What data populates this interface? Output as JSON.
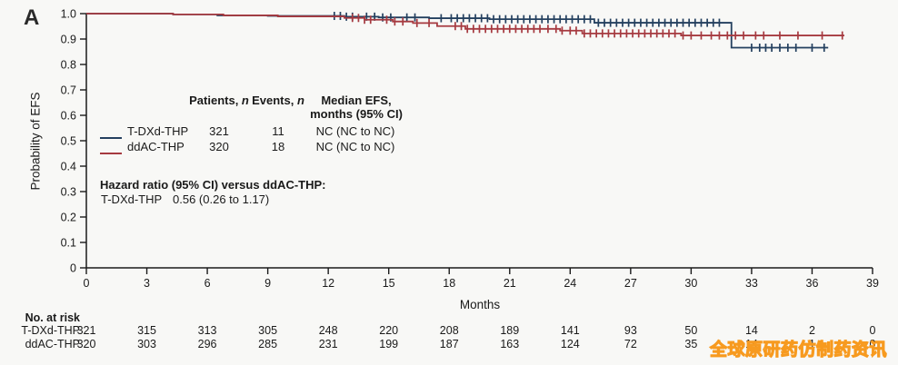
{
  "panel_label": "A",
  "colors": {
    "tdxd": "#24405f",
    "ddac": "#a63a40",
    "axis": "#1a1a1a",
    "background": "#f8f8f6",
    "watermark_fill": "#ffd98f",
    "watermark_outline": "#f79a1f"
  },
  "chart_data": {
    "type": "line",
    "subtype": "kaplan-meier-step",
    "title": "",
    "xlabel": "Months",
    "ylabel": "Probability of EFS",
    "xlim": [
      0,
      39
    ],
    "ylim": [
      0,
      1.0
    ],
    "x_ticks": [
      0,
      3,
      6,
      9,
      12,
      15,
      18,
      21,
      24,
      27,
      30,
      33,
      36,
      39
    ],
    "y_ticks": [
      "1.0",
      "0.9",
      "0.8",
      "0.7",
      "0.6",
      "0.5",
      "0.4",
      "0.3",
      "0.2",
      "0.1",
      "0"
    ],
    "grid": false,
    "legend_position": "inset-table",
    "series": [
      {
        "name": "T-DXd-THP",
        "color": "#24405f",
        "steps": [
          [
            0,
            1.0
          ],
          [
            4.3,
            0.997
          ],
          [
            6.5,
            0.993
          ],
          [
            9.0,
            0.991
          ],
          [
            12.8,
            0.988
          ],
          [
            14.5,
            0.985
          ],
          [
            17.0,
            0.982
          ],
          [
            20.0,
            0.978
          ],
          [
            25.2,
            0.964
          ],
          [
            32.0,
            0.866
          ]
        ],
        "end_month": 36.8,
        "censor_months": [
          12.3,
          12.6,
          12.9,
          13.2,
          13.9,
          14.3,
          14.7,
          15.1,
          15.9,
          16.3,
          17.6,
          18.1,
          18.4,
          18.7,
          19.0,
          19.3,
          19.6,
          19.9,
          20.2,
          20.5,
          20.8,
          21.1,
          21.4,
          21.7,
          22.0,
          22.3,
          22.6,
          22.9,
          23.2,
          23.5,
          23.8,
          24.1,
          24.4,
          24.7,
          25.0,
          25.4,
          25.7,
          26.0,
          26.3,
          26.6,
          26.9,
          27.2,
          27.5,
          27.8,
          28.1,
          28.4,
          28.7,
          29.0,
          29.3,
          29.6,
          29.9,
          30.2,
          30.5,
          30.8,
          31.1,
          31.4,
          33.0,
          33.4,
          33.7,
          34.0,
          34.4,
          34.8,
          35.2,
          36.0,
          36.6
        ]
      },
      {
        "name": "ddAC-THP",
        "color": "#a63a40",
        "steps": [
          [
            0,
            1.0
          ],
          [
            4.3,
            0.997
          ],
          [
            6.8,
            0.993
          ],
          [
            9.5,
            0.989
          ],
          [
            12.8,
            0.983
          ],
          [
            13.8,
            0.976
          ],
          [
            15.2,
            0.969
          ],
          [
            16.2,
            0.963
          ],
          [
            17.4,
            0.951
          ],
          [
            18.8,
            0.94
          ],
          [
            23.5,
            0.933
          ],
          [
            24.6,
            0.922
          ],
          [
            29.5,
            0.914
          ]
        ],
        "end_month": 37.6,
        "censor_months": [
          13.2,
          13.5,
          13.8,
          14.1,
          14.9,
          15.3,
          15.7,
          16.4,
          17.0,
          18.3,
          18.6,
          18.9,
          19.2,
          19.5,
          19.8,
          20.1,
          20.4,
          20.7,
          21.0,
          21.3,
          21.6,
          21.9,
          22.2,
          22.5,
          22.9,
          23.3,
          23.6,
          24.0,
          24.3,
          24.7,
          25.0,
          25.3,
          25.6,
          25.9,
          26.2,
          26.5,
          26.8,
          27.1,
          27.4,
          27.7,
          28.0,
          28.3,
          28.6,
          28.9,
          29.2,
          29.6,
          30.0,
          30.5,
          31.0,
          31.4,
          31.8,
          32.2,
          32.6,
          33.2,
          33.6,
          34.4,
          35.3,
          36.5,
          37.5
        ]
      }
    ]
  },
  "inset_table": {
    "headers": {
      "patients": "Patients,",
      "events": "Events,",
      "n": "n",
      "median_line1": "Median EFS,",
      "median_line2": "months (95% CI)"
    },
    "rows": [
      {
        "label": "T-DXd-THP",
        "patients": "321",
        "events": "11",
        "median": "NC (NC to NC)"
      },
      {
        "label": "ddAC-THP",
        "patients": "320",
        "events": "18",
        "median": "NC (NC to NC)"
      }
    ]
  },
  "hazard_block": {
    "title": "Hazard ratio (95% CI) versus ddAC-THP:",
    "row_label": "T-DXd-THP",
    "value": "0.56 (0.26 to 1.17)"
  },
  "risk_table": {
    "title": "No. at risk",
    "months": [
      0,
      3,
      6,
      9,
      12,
      15,
      18,
      21,
      24,
      27,
      30,
      33,
      36,
      39
    ],
    "rows": [
      {
        "label": "T-DXd-THP",
        "values": [
          "321",
          "315",
          "313",
          "305",
          "248",
          "220",
          "208",
          "189",
          "141",
          "93",
          "50",
          "14",
          "2",
          "0"
        ]
      },
      {
        "label": "ddAC-THP",
        "values": [
          "320",
          "303",
          "296",
          "285",
          "231",
          "199",
          "187",
          "163",
          "124",
          "72",
          "35",
          "14",
          "1",
          "0"
        ]
      }
    ]
  },
  "watermark": {
    "text": "全球原研药仿制药资讯"
  }
}
